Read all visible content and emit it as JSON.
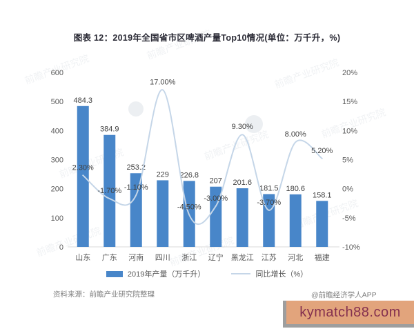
{
  "title": "图表 12：2019年全国省市区啤酒产量Top10情况(单位：万千升，%)",
  "chart_data": {
    "type": "bar+line",
    "title": "图表 12：2019年全国省市区啤酒产量Top10情况(单位：万千升，%)",
    "categories": [
      "山东",
      "广东",
      "河南",
      "四川",
      "浙江",
      "辽宁",
      "黑龙江",
      "江苏",
      "河北",
      "福建"
    ],
    "series": [
      {
        "name": "2019年产量（万千升）",
        "type": "bar",
        "axis": "left",
        "color": "#4886c9",
        "values": [
          484.3,
          384.9,
          253.2,
          229,
          226.8,
          207,
          201.6,
          181.5,
          180.6,
          158.1
        ],
        "value_labels": [
          "484.3",
          "384.9",
          "253.2",
          "229",
          "226.8",
          "207",
          "201.6",
          "181.5",
          "180.6",
          "158.1"
        ]
      },
      {
        "name": "同比增长（%）",
        "type": "line",
        "axis": "right",
        "color": "#c5d6e8",
        "values": [
          2.3,
          -1.7,
          -1.1,
          17.0,
          -4.5,
          -3.0,
          9.3,
          -3.7,
          8.0,
          5.2
        ],
        "value_labels": [
          "2.30%",
          "-1.70%",
          "-1.10%",
          "17.00%",
          "-4.50%",
          "-3.00%",
          "9.30%",
          "-3.70%",
          "8.00%",
          "5.20%"
        ]
      }
    ],
    "left_axis": {
      "min": 0,
      "max": 600,
      "tick_labels": [
        "0",
        "100",
        "200",
        "300",
        "400",
        "500",
        "600"
      ]
    },
    "right_axis": {
      "min": -10,
      "max": 20,
      "tick_labels": [
        "-10%",
        "-5%",
        "0%",
        "5%",
        "10%",
        "15%",
        "20%"
      ]
    },
    "grid": false,
    "legend_position": "bottom"
  },
  "legend": {
    "bar_label": "2019年产量（万千升）",
    "line_label": "同比增长（%）"
  },
  "footer": {
    "source": "资料来源：前瞻产业研究院整理",
    "credit": "@前瞻经济学人APP"
  },
  "watermark": {
    "site": "kymatch88.com",
    "pattern_text": "前瞻产业研究院"
  },
  "colors": {
    "bar": "#4886c9",
    "line": "#c5d6e8",
    "title_text": "#2a2a35",
    "axis_text": "#595959",
    "label_text": "#404040",
    "source_text": "#808080",
    "axis_line": "#d9d9d9",
    "watermark_box_bg": "#e2a47c",
    "watermark_box_text": "#84304f",
    "watermark_box_shadow": "#9e9e9e"
  }
}
